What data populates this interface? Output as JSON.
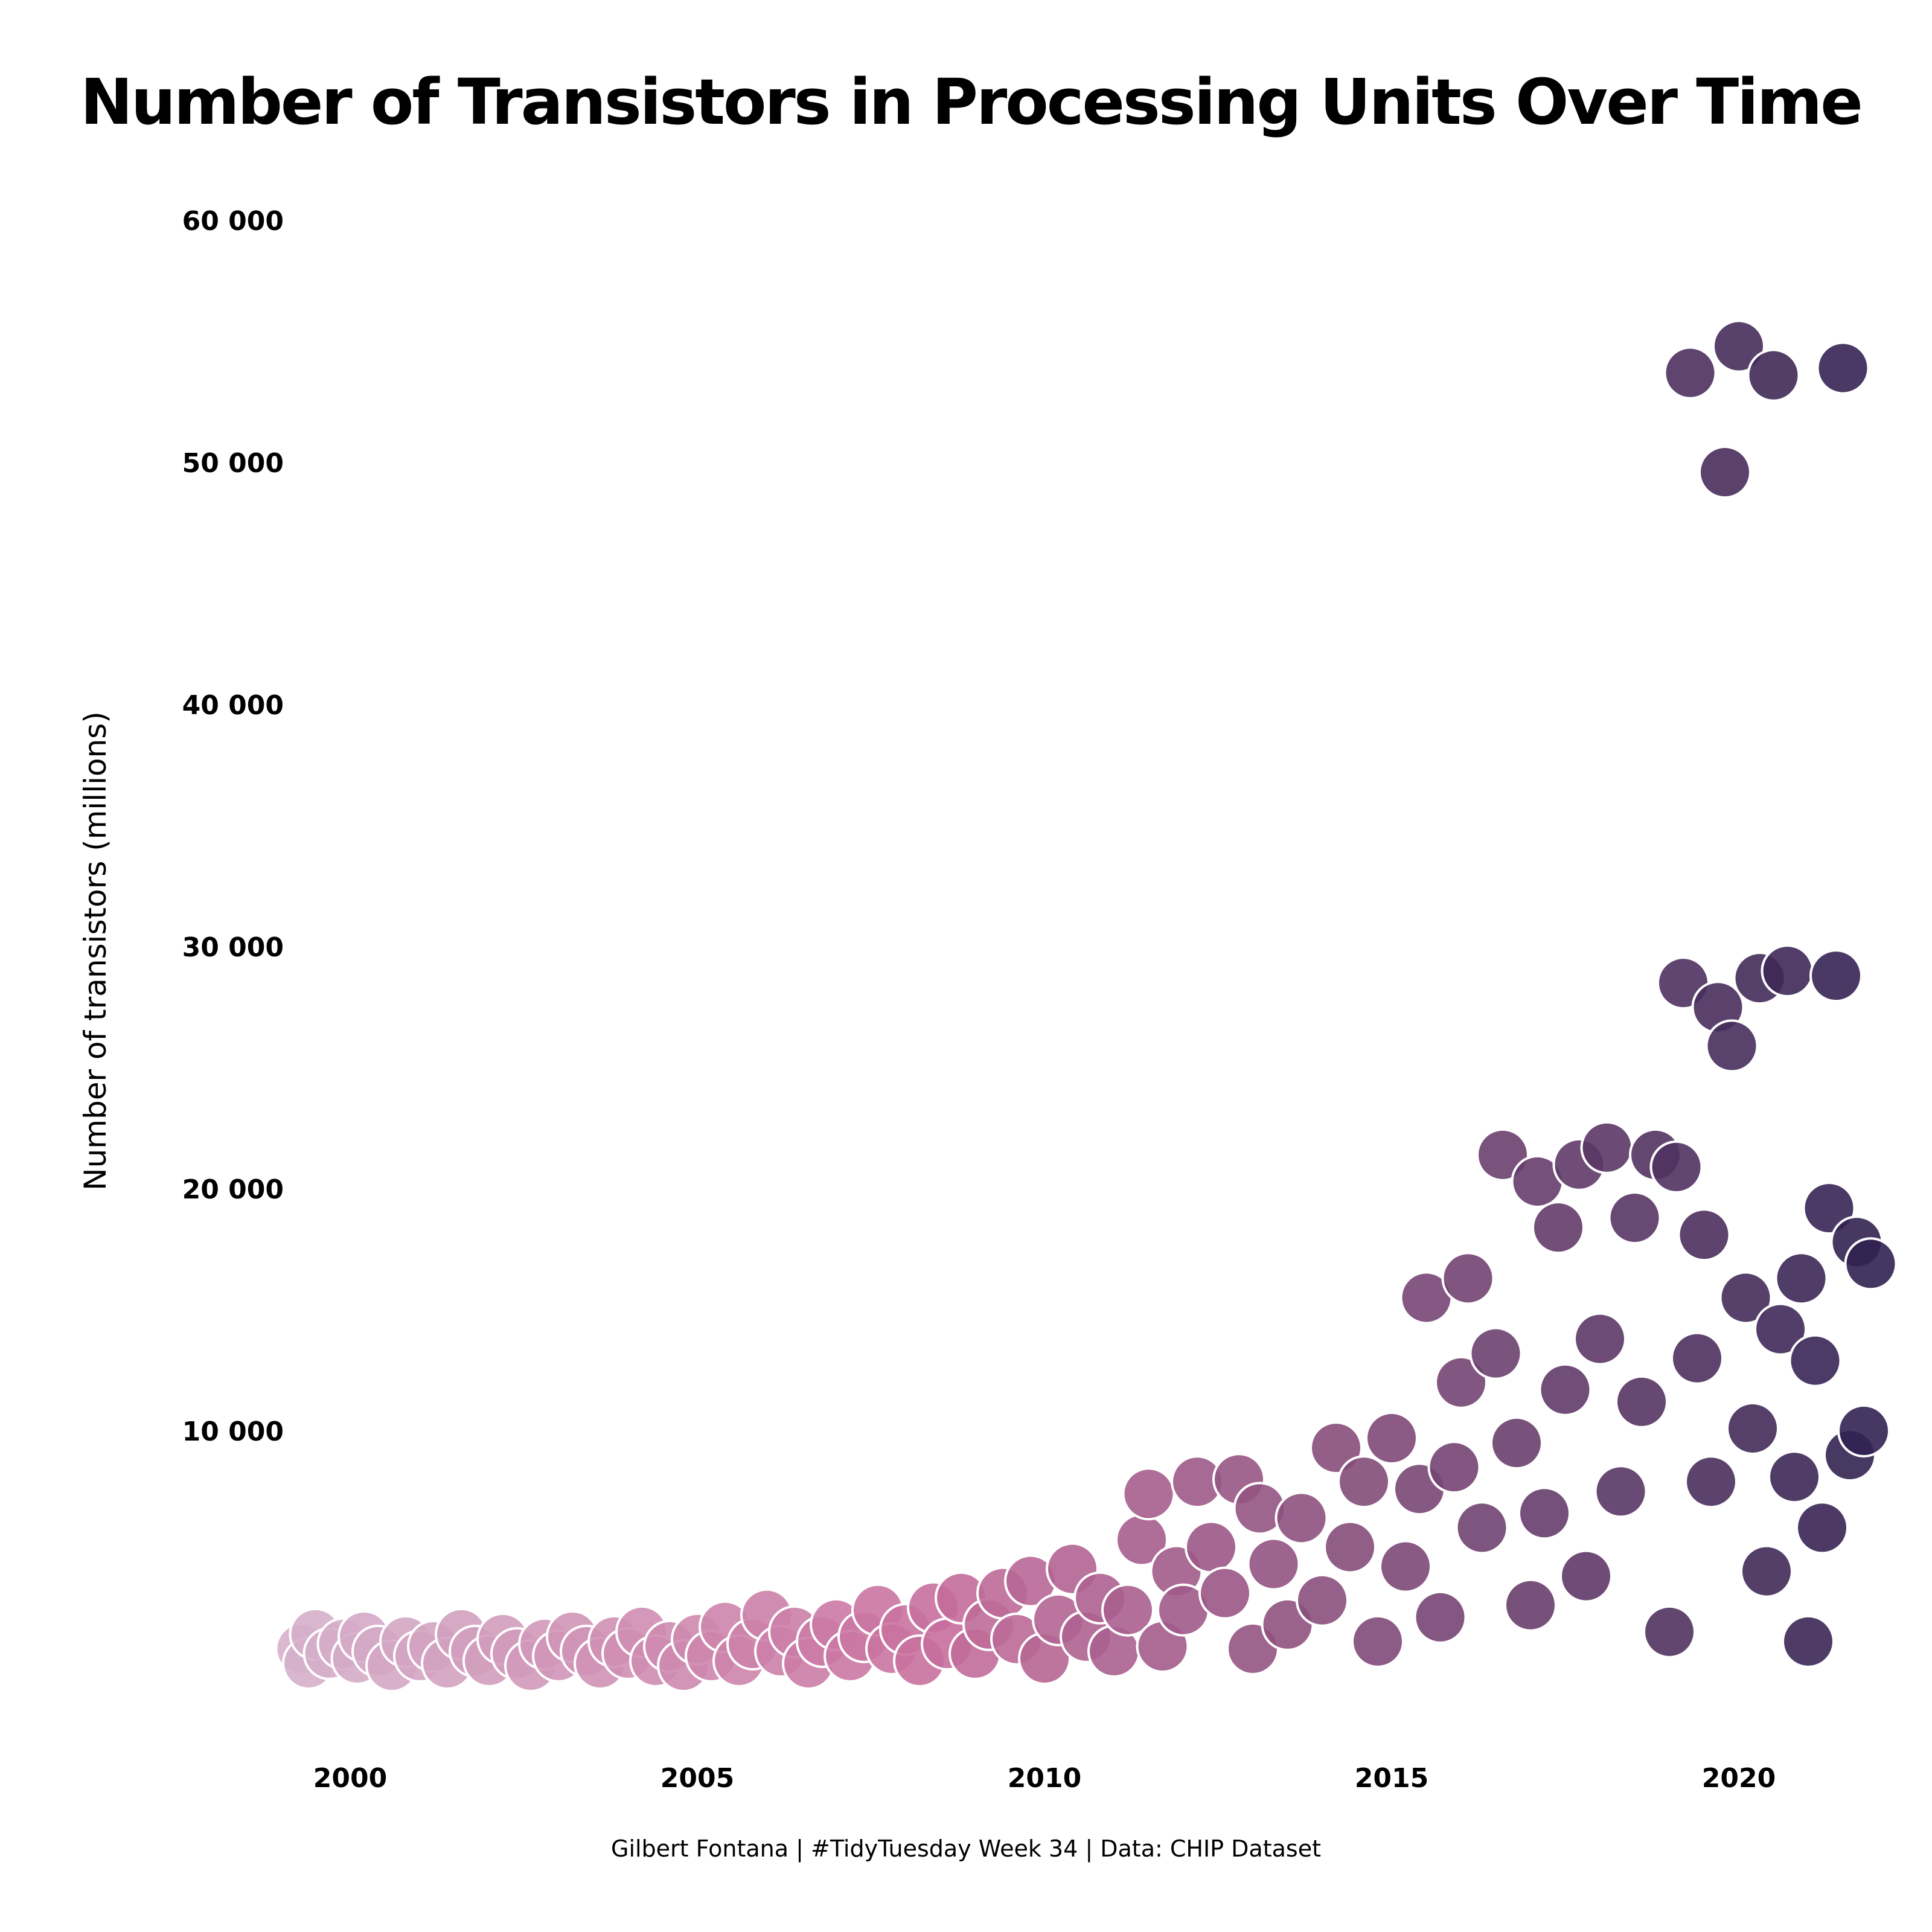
{
  "chart_data": {
    "type": "scatter",
    "title": "Number of Transistors in Processing Units Over Time",
    "xlabel": "",
    "ylabel": "Number of transistors (millions)",
    "caption": "Gilbert Fontana | #TidyTuesday Week 34 | Data: CHIP Dataset",
    "xlim": [
      1999.0,
      2022.3
    ],
    "ylim": [
      0,
      61000
    ],
    "x_ticks": [
      2000,
      2005,
      2010,
      2015,
      2020
    ],
    "x_tick_labels": [
      "2000",
      "2005",
      "2010",
      "2015",
      "2020"
    ],
    "y_ticks": [
      10000,
      20000,
      30000,
      40000,
      50000,
      60000
    ],
    "y_tick_labels": [
      "10 000",
      "20 000",
      "30 000",
      "40 000",
      "50 000",
      "60 000"
    ],
    "grid": false,
    "legend": "none",
    "color_scale": {
      "low": "#d6b3cc",
      "mid": "#c9709e",
      "high": "#2c1f4e",
      "by": "x"
    },
    "marker_stroke": "#ffffff",
    "marker_opacity": 0.9,
    "points": [
      [
        1999.3,
        1000
      ],
      [
        1999.4,
        400
      ],
      [
        1999.5,
        1600
      ],
      [
        1999.7,
        800
      ],
      [
        1999.9,
        1200
      ],
      [
        2000.1,
        600
      ],
      [
        2000.2,
        1500
      ],
      [
        2000.4,
        900
      ],
      [
        2000.6,
        300
      ],
      [
        2000.8,
        1300
      ],
      [
        2001.0,
        700
      ],
      [
        2001.2,
        1100
      ],
      [
        2001.4,
        400
      ],
      [
        2001.6,
        1600
      ],
      [
        2001.8,
        900
      ],
      [
        2002.0,
        500
      ],
      [
        2002.2,
        1400
      ],
      [
        2002.4,
        800
      ],
      [
        2002.6,
        300
      ],
      [
        2002.8,
        1200
      ],
      [
        2003.0,
        700
      ],
      [
        2003.2,
        1500
      ],
      [
        2003.4,
        900
      ],
      [
        2003.6,
        400
      ],
      [
        2003.8,
        1300
      ],
      [
        2004.0,
        800
      ],
      [
        2004.2,
        1700
      ],
      [
        2004.4,
        500
      ],
      [
        2004.6,
        1100
      ],
      [
        2004.8,
        300
      ],
      [
        2005.0,
        1400
      ],
      [
        2005.2,
        700
      ],
      [
        2005.4,
        1900
      ],
      [
        2005.6,
        500
      ],
      [
        2005.8,
        1200
      ],
      [
        2006.0,
        2400
      ],
      [
        2006.2,
        900
      ],
      [
        2006.4,
        1700
      ],
      [
        2006.6,
        400
      ],
      [
        2006.8,
        1300
      ],
      [
        2007.0,
        2000
      ],
      [
        2007.2,
        700
      ],
      [
        2007.4,
        1500
      ],
      [
        2007.6,
        2600
      ],
      [
        2007.8,
        1000
      ],
      [
        2008.0,
        1800
      ],
      [
        2008.2,
        500
      ],
      [
        2008.4,
        2700
      ],
      [
        2008.6,
        1200
      ],
      [
        2008.8,
        3100
      ],
      [
        2009.0,
        800
      ],
      [
        2009.2,
        2000
      ],
      [
        2009.4,
        3300
      ],
      [
        2009.6,
        1400
      ],
      [
        2009.8,
        3800
      ],
      [
        2010.0,
        600
      ],
      [
        2010.2,
        2200
      ],
      [
        2010.4,
        4300
      ],
      [
        2010.6,
        1500
      ],
      [
        2010.8,
        3100
      ],
      [
        2011.0,
        900
      ],
      [
        2011.2,
        2600
      ],
      [
        2011.4,
        5500
      ],
      [
        2011.5,
        7400
      ],
      [
        2011.7,
        1100
      ],
      [
        2011.9,
        4200
      ],
      [
        2012.0,
        2600
      ],
      [
        2012.2,
        7900
      ],
      [
        2012.4,
        5200
      ],
      [
        2012.6,
        3300
      ],
      [
        2012.8,
        8000
      ],
      [
        2013.0,
        1000
      ],
      [
        2013.1,
        6800
      ],
      [
        2013.3,
        4500
      ],
      [
        2013.5,
        2000
      ],
      [
        2013.7,
        6400
      ],
      [
        2014.0,
        3000
      ],
      [
        2014.2,
        9300
      ],
      [
        2014.4,
        5200
      ],
      [
        2014.6,
        7900
      ],
      [
        2014.8,
        1300
      ],
      [
        2015.0,
        9700
      ],
      [
        2015.2,
        4400
      ],
      [
        2015.4,
        7600
      ],
      [
        2015.5,
        15500
      ],
      [
        2015.7,
        2300
      ],
      [
        2015.9,
        8500
      ],
      [
        2016.0,
        12000
      ],
      [
        2016.1,
        16300
      ],
      [
        2016.3,
        6000
      ],
      [
        2016.5,
        13200
      ],
      [
        2016.6,
        21400
      ],
      [
        2016.8,
        9500
      ],
      [
        2017.0,
        2800
      ],
      [
        2017.1,
        20300
      ],
      [
        2017.2,
        6600
      ],
      [
        2017.4,
        18400
      ],
      [
        2017.5,
        11700
      ],
      [
        2017.7,
        21000
      ],
      [
        2017.8,
        4000
      ],
      [
        2018.0,
        13800
      ],
      [
        2018.1,
        21700
      ],
      [
        2018.3,
        7500
      ],
      [
        2018.5,
        18800
      ],
      [
        2018.6,
        11200
      ],
      [
        2018.8,
        21400
      ],
      [
        2019.0,
        1700
      ],
      [
        2019.1,
        20900
      ],
      [
        2019.2,
        28500
      ],
      [
        2019.3,
        53700
      ],
      [
        2019.4,
        13000
      ],
      [
        2019.5,
        18100
      ],
      [
        2019.6,
        7900
      ],
      [
        2019.7,
        27500
      ],
      [
        2019.8,
        49600
      ],
      [
        2019.9,
        25900
      ],
      [
        2020.0,
        54800
      ],
      [
        2020.1,
        15500
      ],
      [
        2020.2,
        10100
      ],
      [
        2020.3,
        28700
      ],
      [
        2020.4,
        4200
      ],
      [
        2020.5,
        53600
      ],
      [
        2020.6,
        14200
      ],
      [
        2020.7,
        29000
      ],
      [
        2020.8,
        8100
      ],
      [
        2020.9,
        16300
      ],
      [
        2021.0,
        1300
      ],
      [
        2021.1,
        12900
      ],
      [
        2021.2,
        6000
      ],
      [
        2021.3,
        19200
      ],
      [
        2021.4,
        28800
      ],
      [
        2021.5,
        53900
      ],
      [
        2021.6,
        9000
      ],
      [
        2021.7,
        17800
      ],
      [
        2021.8,
        10000
      ],
      [
        2021.9,
        16900
      ]
    ]
  }
}
